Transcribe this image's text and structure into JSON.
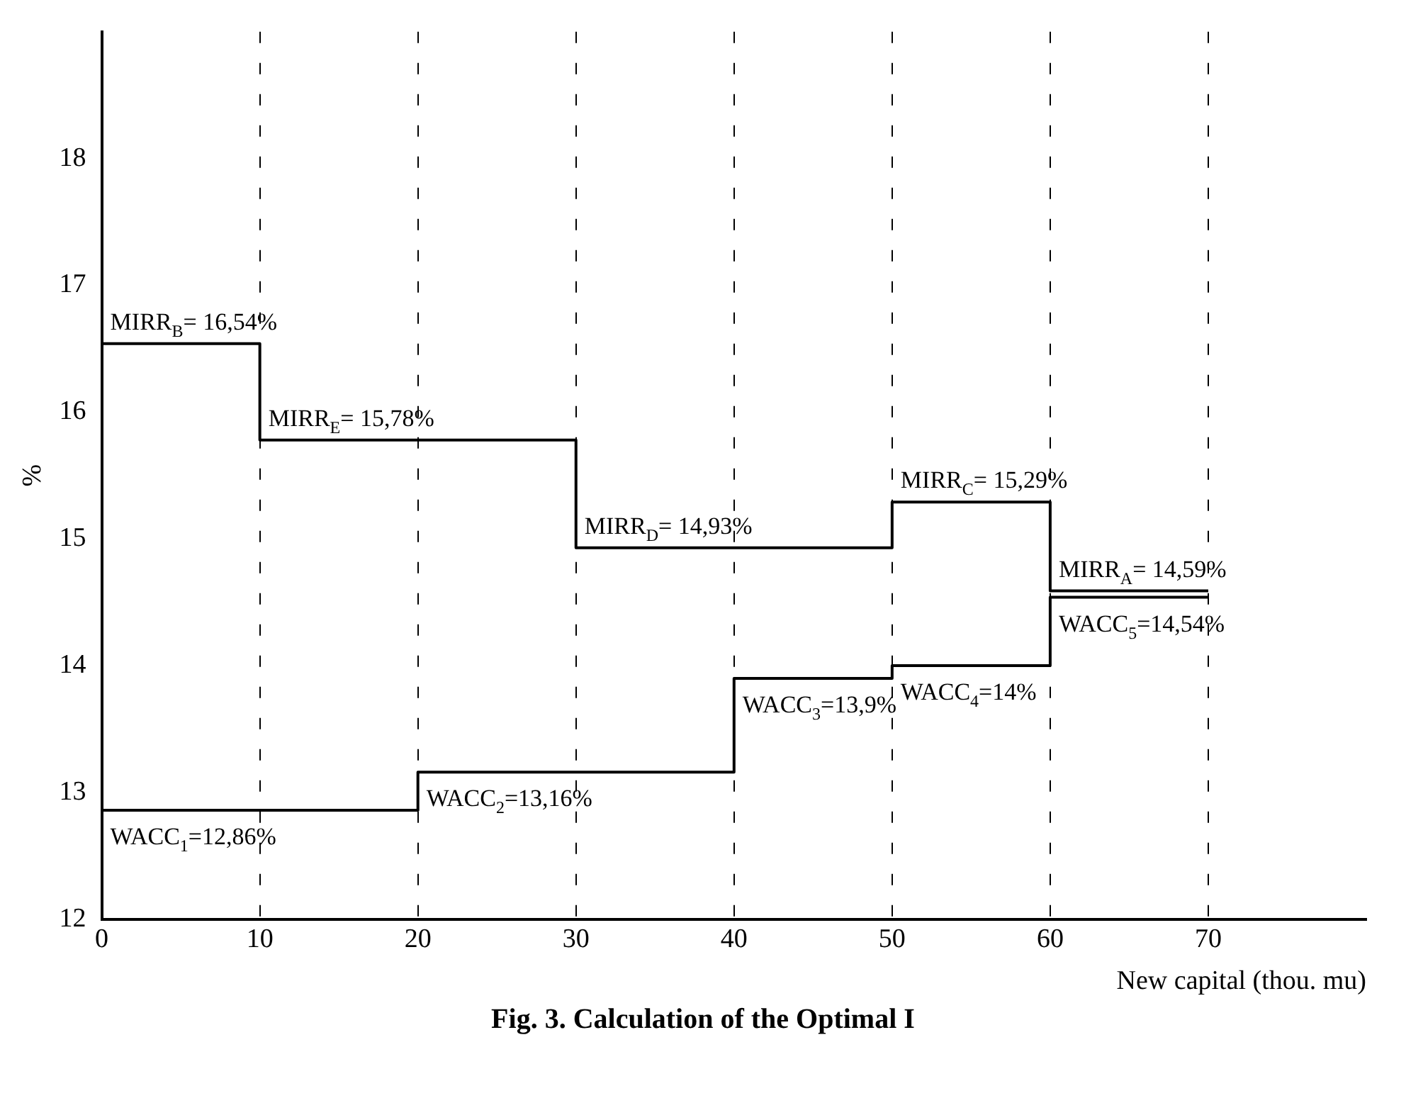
{
  "chart_data": {
    "type": "step",
    "title": "Fig. 3. Calculation of the Optimal I",
    "xlabel": "New capital (thou. mu)",
    "ylabel": "%",
    "xlim": [
      0,
      80
    ],
    "xticks": [
      0,
      10,
      20,
      30,
      40,
      50,
      60,
      70
    ],
    "ylim": [
      12,
      19
    ],
    "yticks": [
      12,
      13,
      14,
      15,
      16,
      17,
      18
    ],
    "grid": "x",
    "line_style": "solid",
    "marker": "none",
    "series": [
      {
        "color": "#000000",
        "x": [
          0,
          10,
          30,
          50,
          60,
          70
        ],
        "values": [
          16.54,
          15.78,
          14.93,
          15.29,
          14.59,
          14.59
        ],
        "value_labels": [
          "MIRR$_{B}$= 16,54%",
          "MIRR$_{E}$= 15,78%",
          "MIRR$_{D}$= 14,93%",
          "MIRR$_{C}$= 15,29%",
          "MIRR$_{A}$= 14,59%",
          null
        ]
      },
      {
        "color": "#000000",
        "x": [
          0,
          20,
          40,
          50,
          60,
          70
        ],
        "values": [
          12.86,
          13.16,
          13.9,
          14,
          14.54,
          14.54
        ],
        "value_labels": [
          "WACC$_{1}$=12,86%",
          "WACC$_{2}$=13,16%",
          "WACC$_{3}$=13,9%",
          "WACC$_{4}$=14%",
          "WACC$_{5}$=14,54%",
          null
        ]
      }
    ]
  }
}
